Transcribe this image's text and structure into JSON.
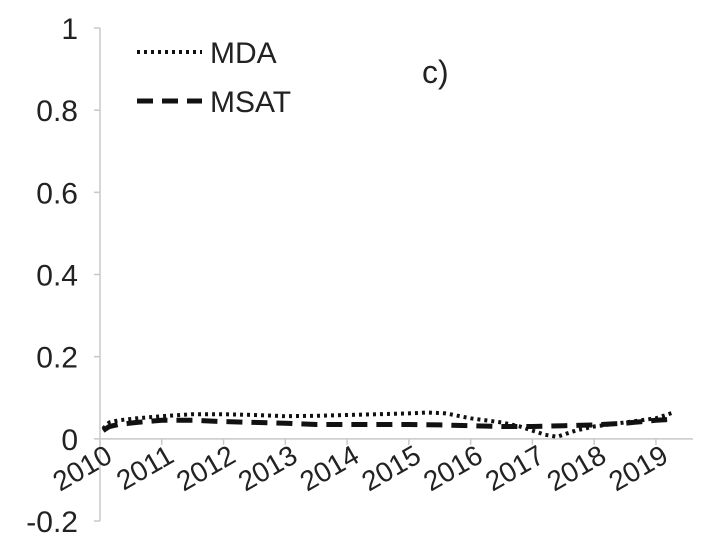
{
  "chart_data": {
    "type": "line",
    "panel_label": "c)",
    "ylim": [
      -0.2,
      1
    ],
    "yticks": [
      "1",
      "0.8",
      "0.6",
      "0.4",
      "0.2",
      "0",
      "-0.2"
    ],
    "ytick_values": [
      1,
      0.8,
      0.6,
      0.4,
      0.2,
      0,
      -0.2
    ],
    "xlim": [
      2010,
      2019.6
    ],
    "xticks": [
      "2010",
      "2011",
      "2012",
      "2013",
      "2014",
      "2015",
      "2016",
      "2017",
      "2018",
      "2019"
    ],
    "xtick_values": [
      2010,
      2011,
      2012,
      2013,
      2014,
      2015,
      2016,
      2017,
      2018,
      2019
    ],
    "grid": false,
    "legend_position": "top-left",
    "series": [
      {
        "name": "MDA",
        "style": "dotted",
        "color": "#111111",
        "x": [
          2010.05,
          2010.15,
          2010.3,
          2010.6,
          2011.0,
          2011.5,
          2012.0,
          2012.5,
          2013.0,
          2013.5,
          2014.0,
          2014.5,
          2015.0,
          2015.3,
          2015.6,
          2016.0,
          2016.5,
          2016.8,
          2017.0,
          2017.2,
          2017.4,
          2017.7,
          2018.0,
          2018.5,
          2019.0,
          2019.3
        ],
        "y": [
          0.025,
          0.04,
          0.045,
          0.05,
          0.055,
          0.06,
          0.06,
          0.058,
          0.055,
          0.056,
          0.058,
          0.06,
          0.062,
          0.064,
          0.062,
          0.05,
          0.04,
          0.03,
          0.02,
          0.01,
          0.005,
          0.02,
          0.03,
          0.04,
          0.05,
          0.065
        ]
      },
      {
        "name": "MSAT",
        "style": "dashed",
        "color": "#111111",
        "x": [
          2010.05,
          2010.15,
          2010.3,
          2010.6,
          2011.0,
          2011.5,
          2012.0,
          2012.5,
          2013.0,
          2013.5,
          2014.0,
          2014.5,
          2015.0,
          2015.5,
          2016.0,
          2016.5,
          2017.0,
          2017.5,
          2018.0,
          2018.5,
          2019.0,
          2019.3
        ],
        "y": [
          0.02,
          0.03,
          0.035,
          0.04,
          0.045,
          0.045,
          0.042,
          0.04,
          0.038,
          0.035,
          0.035,
          0.035,
          0.035,
          0.034,
          0.032,
          0.03,
          0.03,
          0.032,
          0.034,
          0.038,
          0.045,
          0.048
        ]
      }
    ]
  }
}
